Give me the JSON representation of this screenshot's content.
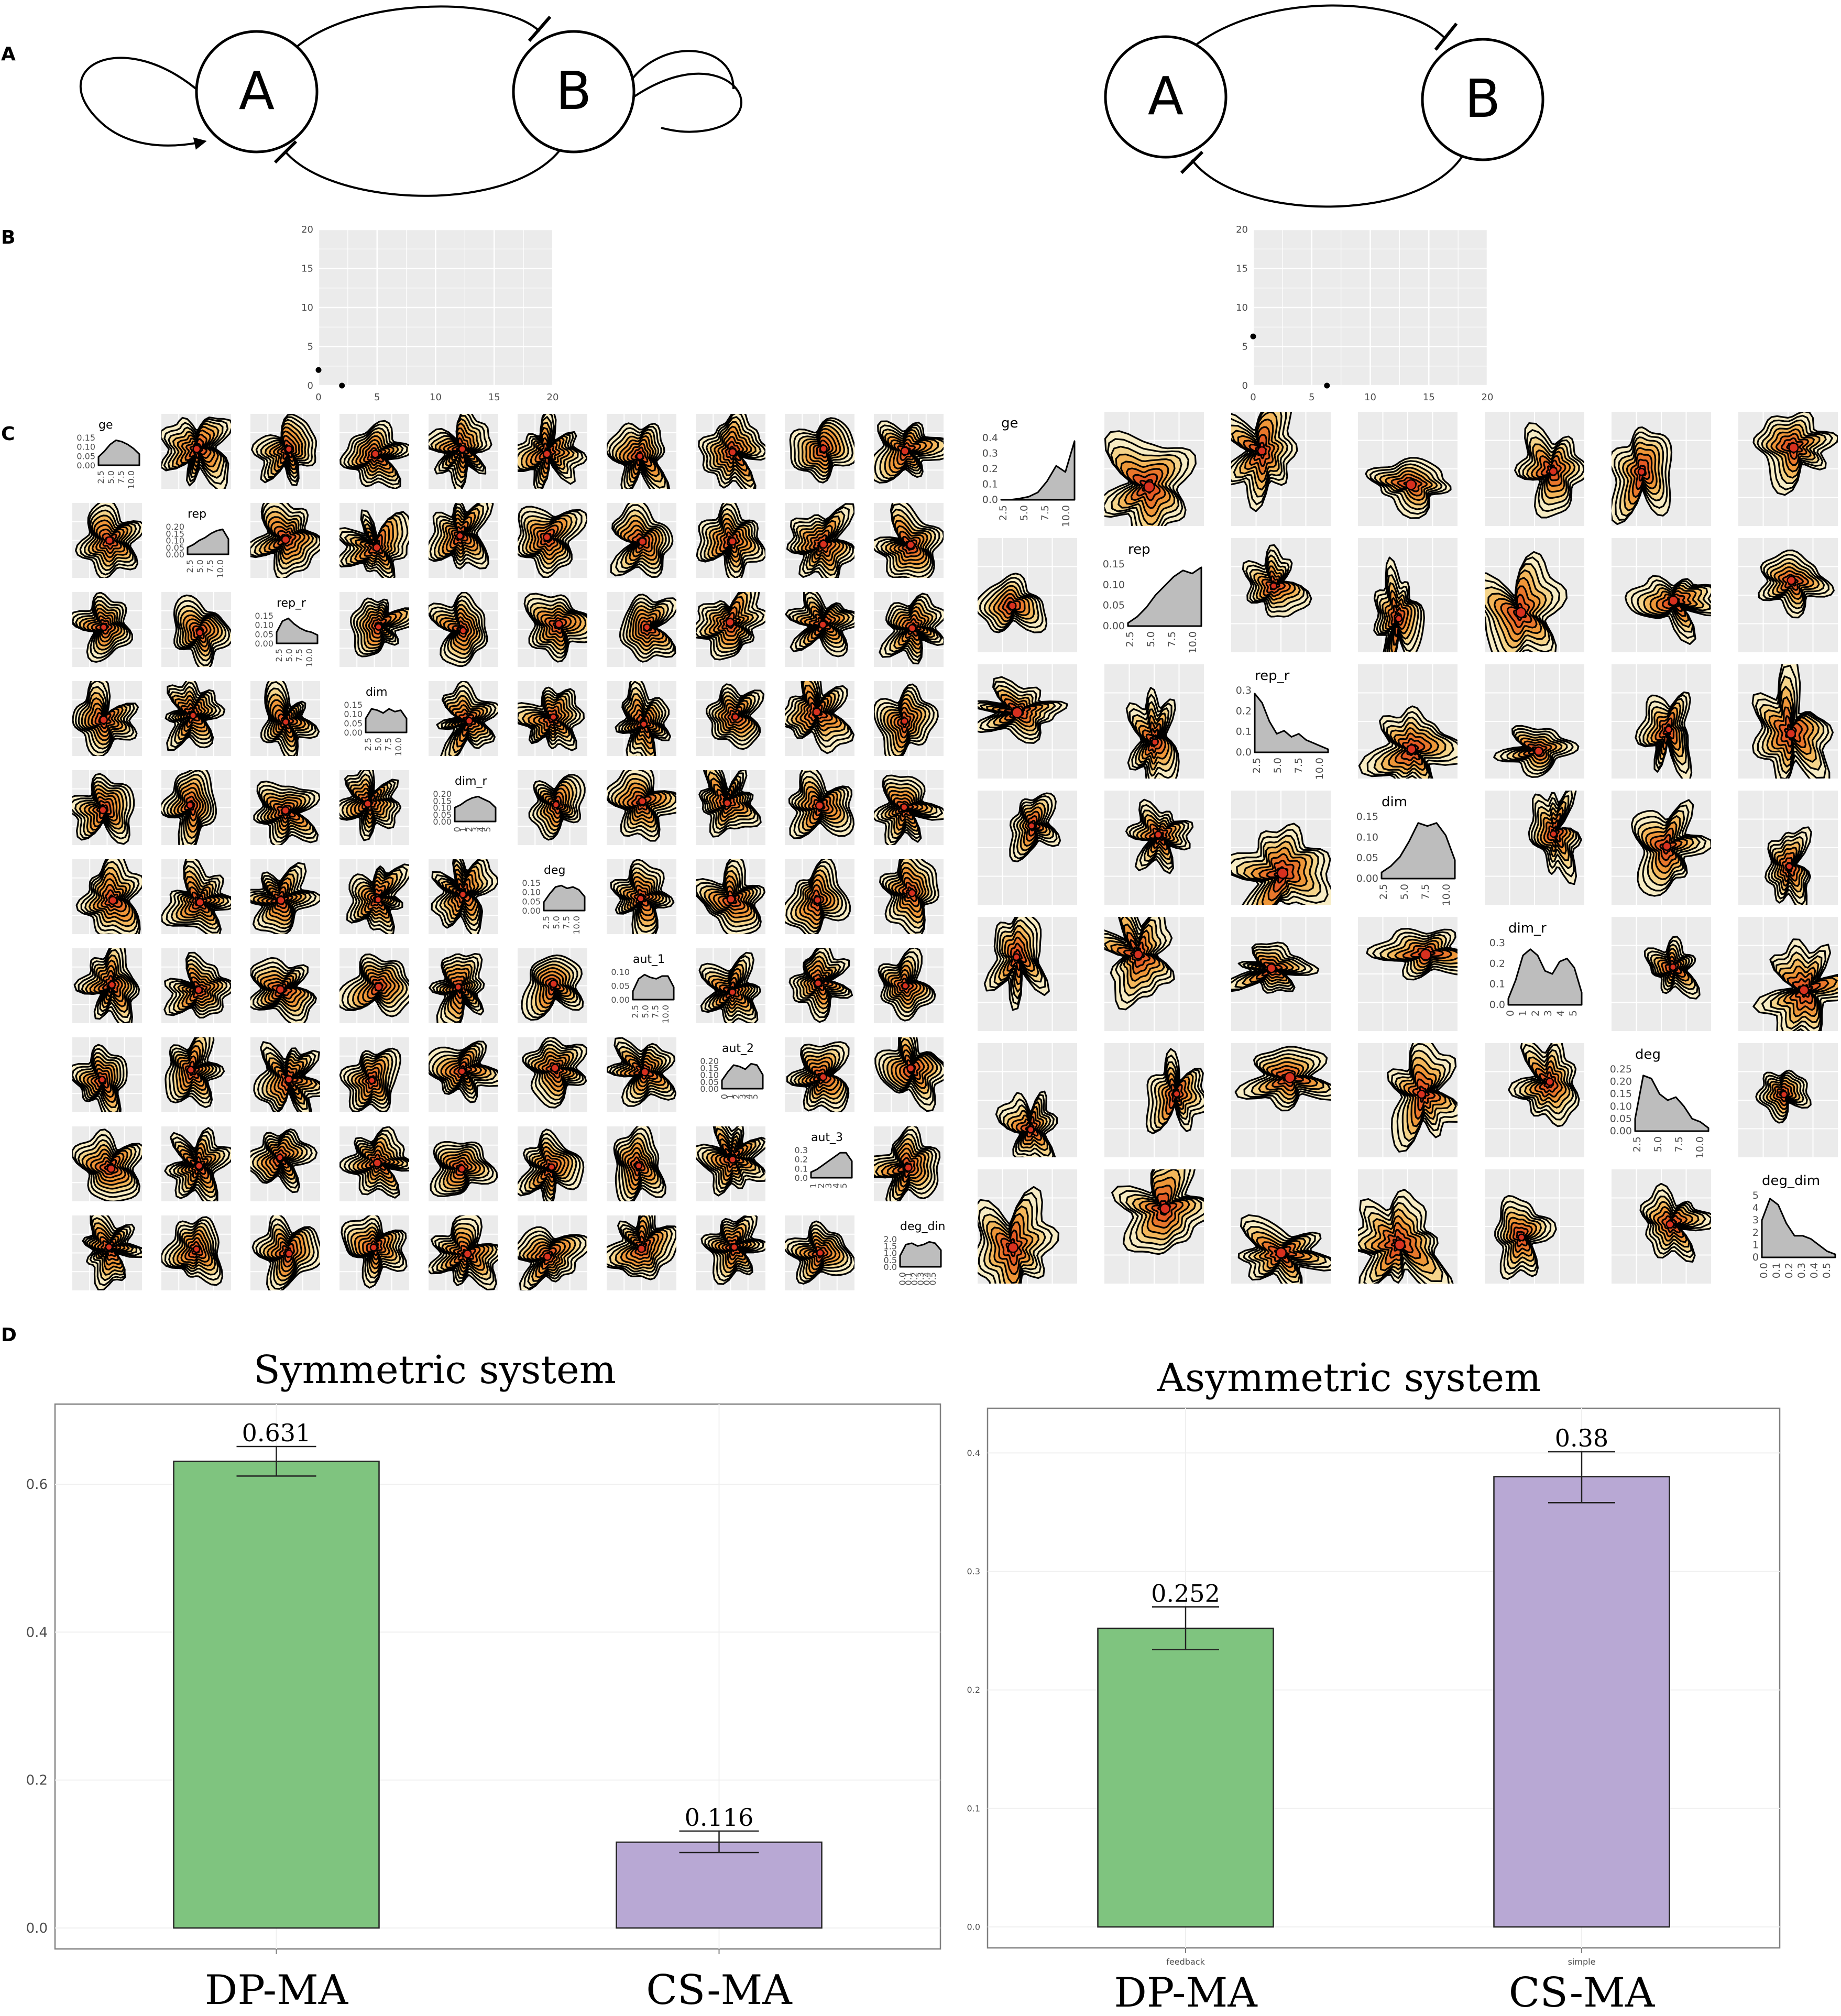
{
  "panels": {
    "labels": [
      "A",
      "B",
      "C",
      "D"
    ],
    "network_nodes": [
      "A",
      "B"
    ]
  },
  "network": [
    {
      "nodes": [
        "A",
        "B"
      ],
      "edges": [
        {
          "from": "A",
          "to": "A",
          "type": "activation"
        },
        {
          "from": "B",
          "to": "B",
          "type": "activation"
        },
        {
          "from": "A",
          "to": "B",
          "type": "inhibition"
        },
        {
          "from": "B",
          "to": "A",
          "type": "inhibition"
        }
      ]
    },
    {
      "nodes": [
        "A",
        "B"
      ],
      "edges": [
        {
          "from": "A",
          "to": "B",
          "type": "inhibition"
        },
        {
          "from": "B",
          "to": "A",
          "type": "inhibition"
        }
      ]
    }
  ],
  "chart_data": [
    {
      "type": "scatter",
      "xlim": [
        0,
        20
      ],
      "ylim": [
        0,
        20
      ],
      "xticks": [
        "0",
        "5",
        "10",
        "15",
        "20"
      ],
      "yticks": [
        "0",
        "5",
        "10",
        "15",
        "20"
      ],
      "points": [
        {
          "x": 0,
          "y": 2
        },
        {
          "x": 2,
          "y": 0
        }
      ],
      "grid": true
    },
    {
      "type": "scatter",
      "xlim": [
        0,
        20
      ],
      "ylim": [
        0,
        20
      ],
      "xticks": [
        "0",
        "5",
        "10",
        "15",
        "20"
      ],
      "yticks": [
        "0",
        "5",
        "10",
        "15",
        "20"
      ],
      "points": [
        {
          "x": 0,
          "y": 6.3
        },
        {
          "x": 6.3,
          "y": 0
        }
      ],
      "grid": true
    },
    {
      "type": "heatmap",
      "variables": [
        "ge",
        "rep",
        "rep_r",
        "dim",
        "dim_r",
        "deg",
        "aut_1",
        "aut_2",
        "aut_3",
        "deg_din"
      ],
      "diagonal_y_ticks": [
        [
          "0.15",
          "0.10",
          "0.05",
          "0.00"
        ],
        [
          "0.20",
          "0.15",
          "0.10",
          "0.05",
          "0.00"
        ],
        [
          "0.15",
          "0.10",
          "0.05",
          "0.00"
        ],
        [
          "0.15",
          "0.10",
          "0.05",
          "0.00"
        ],
        [
          "0.20",
          "0.15",
          "0.10",
          "0.05",
          "0.00"
        ],
        [
          "0.15",
          "0.10",
          "0.05",
          "0.00"
        ],
        [
          "0.10",
          "0.05",
          "0.00"
        ],
        [
          "0.20",
          "0.15",
          "0.10",
          "0.05",
          "0.00"
        ],
        [
          "0.3",
          "0.2",
          "0.1",
          "0.0"
        ],
        [
          "2.0",
          "1.5",
          "1.0",
          "0.5",
          "0.0"
        ]
      ],
      "diagonal_x_ticks": [
        [
          "2.5",
          "5.0",
          "7.5",
          "10.0"
        ],
        [
          "2.5",
          "5.0",
          "7.5",
          "10.0"
        ],
        [
          "2.5",
          "5.0",
          "7.5",
          "10.0"
        ],
        [
          "2.5",
          "5.0",
          "7.5",
          "10.0"
        ],
        [
          "0",
          "1",
          "2",
          "3",
          "4",
          "5"
        ],
        [
          "2.5",
          "5.0",
          "7.5",
          "10.0"
        ],
        [
          "2.5",
          "5.0",
          "7.5",
          "10.0"
        ],
        [
          "0",
          "1",
          "2",
          "3",
          "4",
          "5"
        ],
        [
          "1",
          "2",
          "3",
          "4",
          "5"
        ],
        [
          "0.0",
          "0.1",
          "0.2",
          "0.3",
          "0.4",
          "0.5"
        ]
      ],
      "density_profiles": [
        [
          0.3,
          0.5,
          0.75,
          0.9,
          0.85,
          0.75,
          0.6,
          0.4
        ],
        [
          0.25,
          0.35,
          0.5,
          0.6,
          0.75,
          0.85,
          0.9,
          0.55
        ],
        [
          0.4,
          0.8,
          0.9,
          0.7,
          0.55,
          0.45,
          0.4,
          0.3
        ],
        [
          0.5,
          0.85,
          0.8,
          0.7,
          0.85,
          0.75,
          0.8,
          0.5
        ],
        [
          0.5,
          0.6,
          0.75,
          0.85,
          0.9,
          0.8,
          0.7,
          0.5
        ],
        [
          0.3,
          0.6,
          0.85,
          0.9,
          0.8,
          0.85,
          0.75,
          0.5
        ],
        [
          0.3,
          0.75,
          0.9,
          0.8,
          0.75,
          0.85,
          0.85,
          0.45
        ],
        [
          0.3,
          0.6,
          0.85,
          0.8,
          0.7,
          0.9,
          0.85,
          0.5
        ],
        [
          0.2,
          0.3,
          0.45,
          0.6,
          0.75,
          0.9,
          0.9,
          0.6
        ],
        [
          0.4,
          0.8,
          0.85,
          0.75,
          0.8,
          0.9,
          0.85,
          0.6
        ]
      ]
    },
    {
      "type": "heatmap",
      "variables": [
        "ge",
        "rep",
        "rep_r",
        "dim",
        "dim_r",
        "deg",
        "deg_dim"
      ],
      "diagonal_y_ticks": [
        [
          "0.4",
          "0.3",
          "0.2",
          "0.1",
          "0.0"
        ],
        [
          "0.15",
          "0.10",
          "0.05",
          "0.00"
        ],
        [
          "0.3",
          "0.2",
          "0.1",
          "0.0"
        ],
        [
          "0.15",
          "0.10",
          "0.05",
          "0.00"
        ],
        [
          "0.3",
          "0.2",
          "0.1",
          "0.0"
        ],
        [
          "0.25",
          "0.20",
          "0.15",
          "0.10",
          "0.05",
          "0.00"
        ],
        [
          "5",
          "4",
          "3",
          "2",
          "1",
          "0"
        ]
      ],
      "diagonal_x_ticks": [
        [
          "2.5",
          "5.0",
          "7.5",
          "10.0"
        ],
        [
          "2.5",
          "5.0",
          "7.5",
          "10.0"
        ],
        [
          "2.5",
          "5.0",
          "7.5",
          "10.0"
        ],
        [
          "2.5",
          "5.0",
          "7.5",
          "10.0"
        ],
        [
          "0",
          "1",
          "2",
          "3",
          "4",
          "5"
        ],
        [
          "2.5",
          "5.0",
          "7.5",
          "10.0"
        ],
        [
          "0.0",
          "0.1",
          "0.2",
          "0.3",
          "0.4",
          "0.5"
        ]
      ],
      "density_profiles": [
        [
          0.0,
          0.0,
          0.02,
          0.05,
          0.12,
          0.3,
          0.55,
          0.45,
          0.95
        ],
        [
          0.05,
          0.15,
          0.3,
          0.5,
          0.65,
          0.8,
          0.9,
          0.85,
          0.95
        ],
        [
          0.95,
          0.8,
          0.5,
          0.3,
          0.35,
          0.25,
          0.3,
          0.2,
          0.15,
          0.1,
          0.05
        ],
        [
          0.1,
          0.2,
          0.35,
          0.6,
          0.9,
          0.85,
          0.9,
          0.7,
          0.3
        ],
        [
          0.1,
          0.4,
          0.8,
          0.9,
          0.8,
          0.55,
          0.5,
          0.7,
          0.75,
          0.6,
          0.2
        ],
        [
          0.2,
          0.9,
          0.85,
          0.6,
          0.5,
          0.55,
          0.4,
          0.2,
          0.15,
          0.05
        ],
        [
          0.6,
          0.95,
          0.85,
          0.55,
          0.35,
          0.35,
          0.3,
          0.2,
          0.1,
          0.05
        ]
      ]
    },
    {
      "type": "bar",
      "title": "Symmetric system",
      "categories": [
        "DP-MA",
        "CS-MA"
      ],
      "values": [
        0.631,
        0.116
      ],
      "error_low": [
        0.611,
        0.102
      ],
      "error_high": [
        0.651,
        0.131
      ],
      "colors": [
        "#7fc47f",
        "#b8a8d4"
      ],
      "value_labels": [
        "0.631",
        "0.116"
      ],
      "ylim": [
        0,
        0.68
      ],
      "yticks": [
        "0.0",
        "0.2",
        "0.4",
        "0.6"
      ]
    },
    {
      "type": "bar",
      "title": "Asymmetric system",
      "categories": [
        "DP-MA",
        "CS-MA"
      ],
      "tick_labels": [
        "feedback",
        "simple"
      ],
      "values": [
        0.252,
        0.38
      ],
      "error_low": [
        0.234,
        0.358
      ],
      "error_high": [
        0.27,
        0.401
      ],
      "colors": [
        "#7fc47f",
        "#b8a8d4"
      ],
      "value_labels": [
        "0.252",
        "0.38"
      ],
      "ylim": [
        0,
        0.42
      ],
      "yticks": [
        "0.0",
        "0.1",
        "0.2",
        "0.3",
        "0.4"
      ]
    }
  ]
}
